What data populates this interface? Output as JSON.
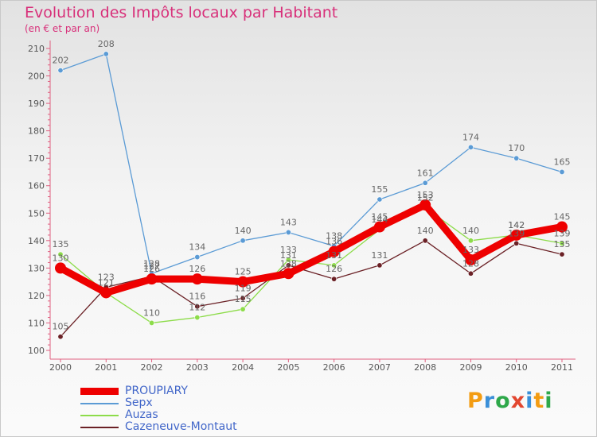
{
  "title": "Evolution des Impôts locaux par Habitant",
  "subtitle": "(en € et par an)",
  "logo": "Proxiti",
  "chart_data": {
    "type": "line",
    "title": "Evolution des Impôts locaux par Habitant",
    "subtitle": "(en € et par an)",
    "xlabel": "",
    "ylabel": "",
    "x": [
      "2000",
      "2001",
      "2002",
      "2003",
      "2004",
      "2005",
      "2006",
      "2007",
      "2008",
      "2009",
      "2010",
      "2011"
    ],
    "ylim": [
      100,
      210
    ],
    "yticks": [
      100,
      110,
      120,
      130,
      140,
      150,
      160,
      170,
      180,
      190,
      200,
      210
    ],
    "grid": false,
    "legend_position": "bottom-left",
    "series": [
      {
        "name": "Sepx",
        "color": "#5b9bd5",
        "values": [
          202,
          208,
          128,
          134,
          140,
          143,
          138,
          155,
          161,
          174,
          170,
          165
        ]
      },
      {
        "name": "Auzas",
        "color": "#8ddc4a",
        "values": [
          135,
          121,
          110,
          112,
          115,
          133,
          131,
          144,
          152,
          140,
          142,
          139
        ]
      },
      {
        "name": "Cazeneuve-Montaut",
        "color": "#6b2126",
        "values": [
          105,
          123,
          127,
          116,
          119,
          131,
          126,
          131,
          140,
          128,
          139,
          135
        ]
      },
      {
        "name": "PROUPIARY",
        "color": "#ee0000",
        "values": [
          130,
          121,
          126,
          126,
          125,
          128,
          136,
          145,
          153,
          133,
          142,
          145
        ]
      }
    ],
    "legend": [
      {
        "name": "PROUPIARY",
        "color": "#ee0000"
      },
      {
        "name": "Sepx",
        "color": "#5b9bd5"
      },
      {
        "name": "Auzas",
        "color": "#8ddc4a"
      },
      {
        "name": "Cazeneuve-Montaut",
        "color": "#6b2126"
      }
    ]
  }
}
